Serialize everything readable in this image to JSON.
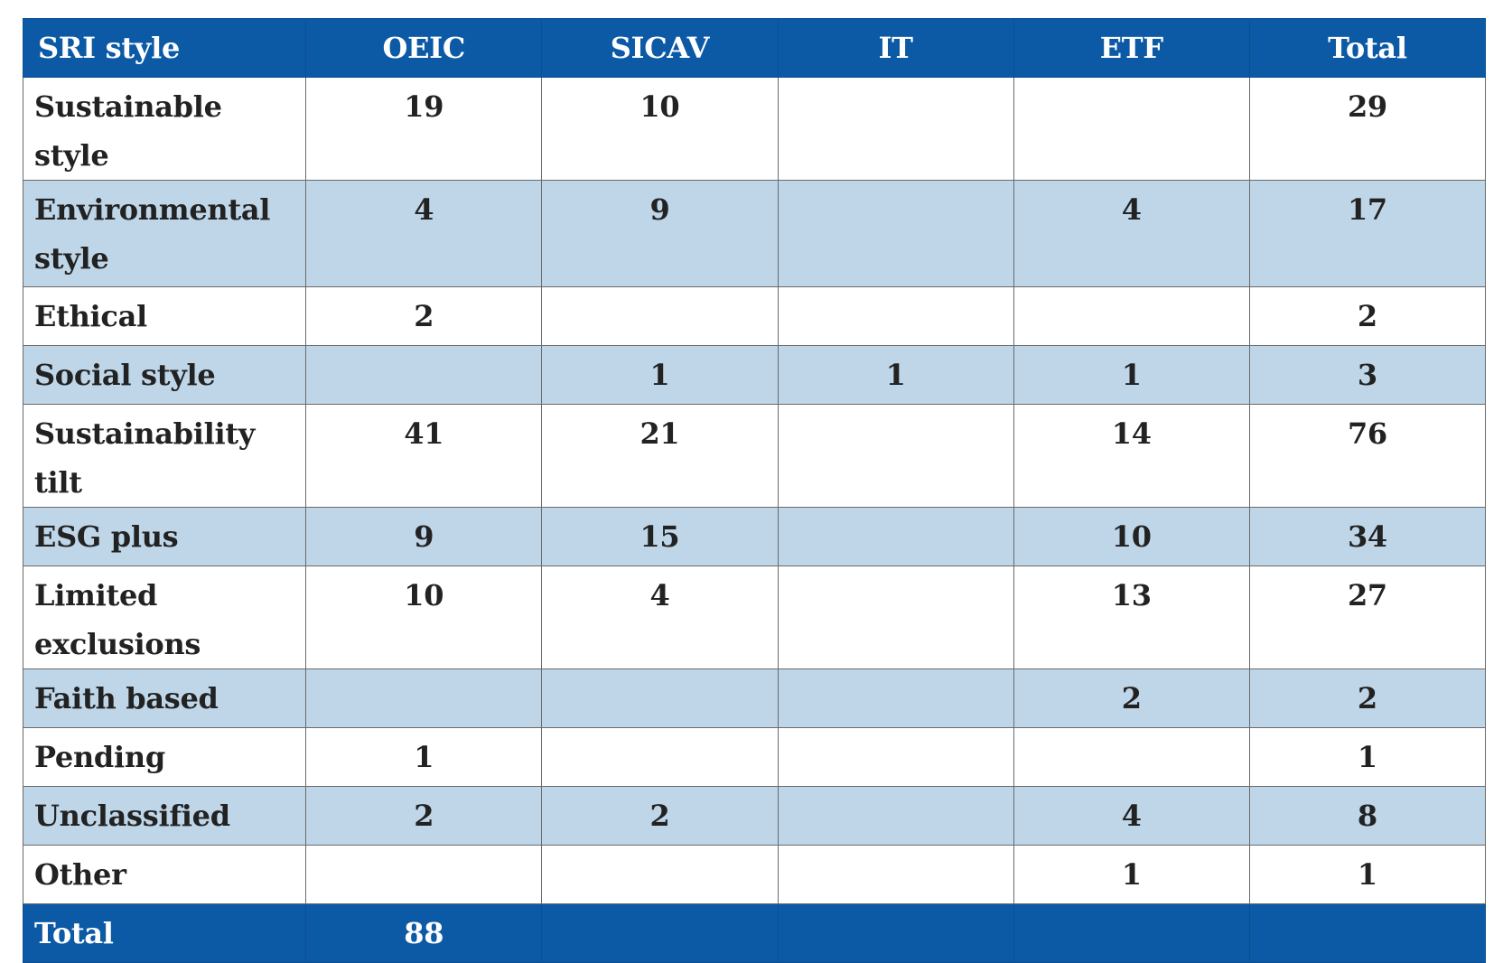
{
  "table": {
    "headers": [
      "SRI style",
      "OEIC",
      "SICAV",
      "IT",
      "ETF",
      "Total"
    ],
    "rows": [
      [
        "Sustainable style",
        "19",
        "10",
        "",
        "",
        "29"
      ],
      [
        "Environmental style",
        "4",
        "9",
        "",
        "4",
        "17"
      ],
      [
        "Ethical",
        "2",
        "",
        "",
        "",
        "2"
      ],
      [
        "Social style",
        "",
        "1",
        "1",
        "1",
        "3"
      ],
      [
        "Sustainability tilt",
        "41",
        "21",
        "",
        "14",
        "76"
      ],
      [
        "ESG plus",
        "9",
        "15",
        "",
        "10",
        "34"
      ],
      [
        "Limited exclusions",
        "10",
        "4",
        "",
        "13",
        "27"
      ],
      [
        "Faith based",
        "",
        "",
        "",
        "2",
        "2"
      ],
      [
        "Pending",
        "1",
        "",
        "",
        "",
        "1"
      ],
      [
        "Unclassified",
        "2",
        "2",
        "",
        "4",
        "8"
      ],
      [
        "Other",
        "",
        "",
        "",
        "1",
        "1"
      ]
    ],
    "total_row": [
      "Total",
      "88",
      "",
      "",
      "",
      ""
    ]
  },
  "colors": {
    "header_bg": "#0c5aa6",
    "stripe_bg": "#bfd6e8",
    "row_bg": "#ffffff"
  }
}
